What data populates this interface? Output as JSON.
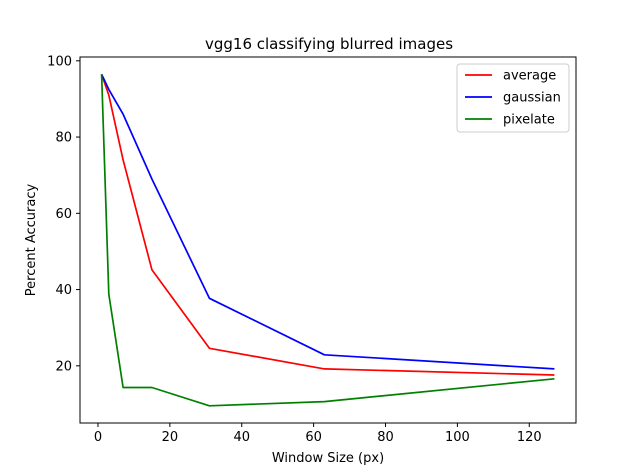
{
  "chart_data": {
    "type": "line",
    "title": "vgg16 classifying blurred images",
    "xlabel": "Window Size (px)",
    "ylabel": "Percent Accuracy",
    "xlim": [
      -5,
      133
    ],
    "ylim": [
      5,
      101
    ],
    "xticks": [
      0,
      20,
      40,
      60,
      80,
      100,
      120
    ],
    "yticks": [
      20,
      40,
      60,
      80,
      100
    ],
    "grid": false,
    "legend_position": "top-right",
    "series": [
      {
        "name": "average",
        "color": "#ff0000",
        "x": [
          1,
          3,
          7,
          15,
          31,
          63,
          127
        ],
        "y": [
          96.5,
          91.0,
          74.0,
          45.2,
          24.6,
          19.2,
          17.6
        ]
      },
      {
        "name": "gaussian",
        "color": "#0000ff",
        "x": [
          1,
          3,
          7,
          15,
          31,
          63,
          127
        ],
        "y": [
          96.5,
          92.5,
          86.0,
          69.0,
          37.7,
          22.9,
          19.2
        ]
      },
      {
        "name": "pixelate",
        "color": "#008000",
        "x": [
          1,
          3,
          7,
          15,
          31,
          63,
          127
        ],
        "y": [
          96.5,
          38.8,
          14.3,
          14.3,
          9.5,
          10.6,
          16.6
        ]
      }
    ]
  }
}
